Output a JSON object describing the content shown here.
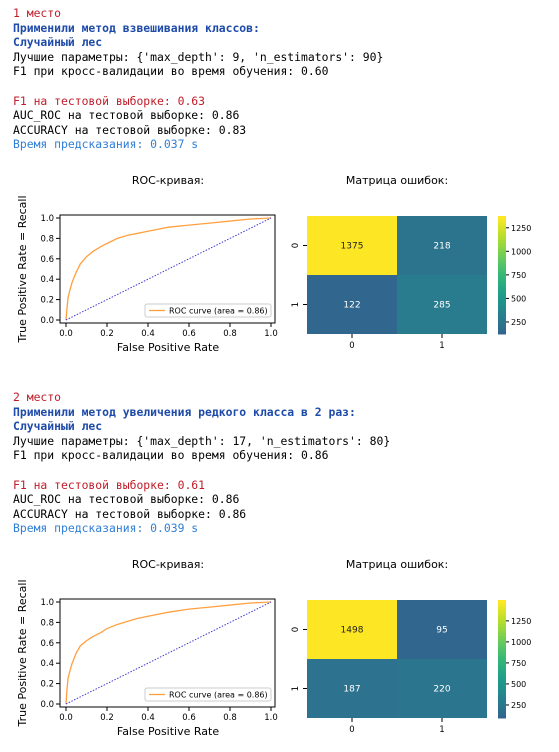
{
  "sections": [
    {
      "place": "1 место",
      "method": "Применили метод взвешивания классов:",
      "model": "Случайный лес",
      "params": "Лучшие параметры: {'max_depth': 9, 'n_estimators': 90}",
      "cv_f1": "F1 при кросс-валидации во время обучения: 0.60",
      "test_f1": "F1 на тестовой выборке: 0.63",
      "auc": "AUC_ROC на тестовой выборке: 0.86",
      "accuracy": "ACCURACY на тестовой выборке: 0.83",
      "pred_time": "Время предсказания: 0.037 s",
      "roc_title": "ROC-кривая:",
      "cm_title": "Матрица ошибок:"
    },
    {
      "place": "2 место",
      "method": "Применили метод увеличения редкого класса в 2 раз:",
      "model": "Случайный лес",
      "params": "Лучшие параметры: {'max_depth': 17, 'n_estimators': 80}",
      "cv_f1": "F1 при кросс-валидации во время обучения: 0.86",
      "test_f1": "F1 на тестовой выборке: 0.61",
      "auc": "AUC_ROC на тестовой выборке: 0.86",
      "accuracy": "ACCURACY на тестовой выборке: 0.86",
      "pred_time": "Время предсказания: 0.039 s",
      "roc_title": "ROC-кривая:",
      "cm_title": "Матрица ошибок:"
    }
  ],
  "chart_data": [
    {
      "type": "line",
      "xlabel": "False Positive Rate",
      "ylabel": "True Positive Rate = Recall",
      "xlim": [
        0,
        1
      ],
      "ylim": [
        0,
        1
      ],
      "ticks": [
        "0.0",
        "0.2",
        "0.4",
        "0.6",
        "0.8",
        "1.0"
      ],
      "legend": "ROC curve (area = 0.86)",
      "legend_position": "lower-right",
      "series": [
        {
          "name": "ROC curve (area = 0.86)",
          "color": "#ffa040",
          "x": [
            0,
            0.005,
            0.01,
            0.02,
            0.03,
            0.05,
            0.07,
            0.1,
            0.13,
            0.17,
            0.2,
            0.25,
            0.3,
            0.35,
            0.4,
            0.45,
            0.5,
            0.6,
            0.7,
            0.8,
            0.9,
            1.0
          ],
          "y": [
            0,
            0.12,
            0.22,
            0.3,
            0.37,
            0.47,
            0.55,
            0.62,
            0.67,
            0.72,
            0.75,
            0.8,
            0.83,
            0.85,
            0.87,
            0.89,
            0.91,
            0.93,
            0.95,
            0.97,
            0.99,
            1.0
          ]
        },
        {
          "name": "",
          "color": "#3b3bcc",
          "dashed": true,
          "x": [
            0,
            1
          ],
          "y": [
            0,
            1
          ]
        }
      ]
    },
    {
      "type": "heatmap",
      "rows": [
        "0",
        "1"
      ],
      "cols": [
        "0",
        "1"
      ],
      "values": [
        [
          1375,
          218
        ],
        [
          122,
          285
        ]
      ],
      "colorbar_ticks": [
        250,
        500,
        750,
        1000,
        1250
      ],
      "vmin": 122,
      "vmax": 1375
    },
    {
      "type": "line",
      "xlabel": "False Positive Rate",
      "ylabel": "True Positive Rate = Recall",
      "xlim": [
        0,
        1
      ],
      "ylim": [
        0,
        1
      ],
      "ticks": [
        "0.0",
        "0.2",
        "0.4",
        "0.6",
        "0.8",
        "1.0"
      ],
      "legend": "ROC curve (area = 0.86)",
      "legend_position": "lower-right",
      "series": [
        {
          "name": "ROC curve (area = 0.86)",
          "color": "#ffa040",
          "x": [
            0,
            0.005,
            0.01,
            0.02,
            0.03,
            0.05,
            0.07,
            0.1,
            0.13,
            0.17,
            0.2,
            0.25,
            0.3,
            0.35,
            0.4,
            0.45,
            0.5,
            0.6,
            0.7,
            0.8,
            0.9,
            1.0
          ],
          "y": [
            0,
            0.15,
            0.25,
            0.33,
            0.4,
            0.5,
            0.57,
            0.62,
            0.66,
            0.7,
            0.74,
            0.78,
            0.81,
            0.84,
            0.86,
            0.88,
            0.9,
            0.93,
            0.95,
            0.97,
            0.99,
            1.0
          ]
        },
        {
          "name": "",
          "color": "#3b3bcc",
          "dashed": true,
          "x": [
            0,
            1
          ],
          "y": [
            0,
            1
          ]
        }
      ]
    },
    {
      "type": "heatmap",
      "rows": [
        "0",
        "1"
      ],
      "cols": [
        "0",
        "1"
      ],
      "values": [
        [
          1498,
          95
        ],
        [
          187,
          220
        ]
      ],
      "colorbar_ticks": [
        250,
        500,
        750,
        1000,
        1250
      ],
      "vmin": 95,
      "vmax": 1498
    }
  ]
}
